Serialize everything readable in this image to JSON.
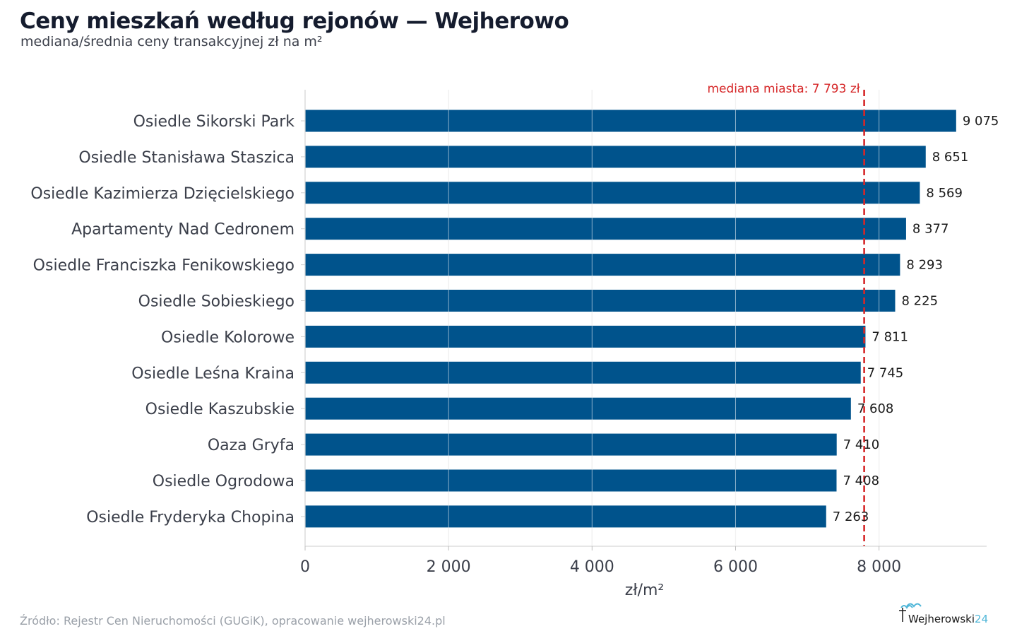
{
  "header": {
    "title": "Ceny mieszkań według rejonów — Wejherowo",
    "subtitle": "mediana/średnia ceny transakcyjnej zł na m²"
  },
  "footer": {
    "source": "Źródło: Rejestr Cen Nieruchomości (GUGiK), opracowanie wejherowski24.pl",
    "logo_text": "Wejherowski",
    "logo_number": "24"
  },
  "colors": {
    "bar": "#00538c",
    "median_line": "#d62728",
    "grid": "#e3e3e3",
    "axis_text": "#3b3f4a",
    "value_text": "#1a1a1a"
  },
  "chart_data": {
    "type": "bar",
    "orientation": "horizontal",
    "title": "Ceny mieszkań według rejonów — Wejherowo",
    "subtitle": "mediana/średnia ceny transakcyjnej zł na m²",
    "xlabel": "zł/m²",
    "ylabel": "",
    "xlim": [
      0,
      9500
    ],
    "xticks": [
      0,
      2000,
      4000,
      6000,
      8000
    ],
    "xtick_labels": [
      "0",
      "2 000",
      "4 000",
      "6 000",
      "8 000"
    ],
    "grid": true,
    "categories": [
      "Osiedle Sikorski Park",
      "Osiedle Stanisława Staszica",
      "Osiedle Kazimierza Dzięcielskiego",
      "Apartamenty Nad Cedronem",
      "Osiedle Franciszka Fenikowskiego",
      "Osiedle Sobieskiego",
      "Osiedle Kolorowe",
      "Osiedle Leśna Kraina",
      "Osiedle Kaszubskie",
      "Oaza Gryfa",
      "Osiedle Ogrodowa",
      "Osiedle Fryderyka Chopina"
    ],
    "values": [
      9075,
      8651,
      8569,
      8377,
      8293,
      8225,
      7811,
      7745,
      7608,
      7410,
      7408,
      7263
    ],
    "value_labels": [
      "9 075",
      "8 651",
      "8 569",
      "8 377",
      "8 293",
      "8 225",
      "7 811",
      "7 745",
      "7 608",
      "7 410",
      "7 408",
      "7 263"
    ],
    "reference_line": {
      "value": 7793,
      "label": "mediana miasta: 7 793 zł",
      "style": "dashed"
    }
  }
}
